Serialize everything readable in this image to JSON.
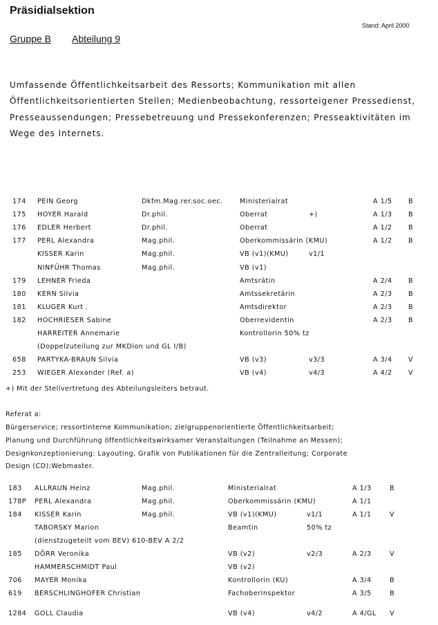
{
  "header": {
    "title": "Präsidialsektion",
    "stand": "Stand: April 2000",
    "gruppe": "Gruppe B",
    "abteilung": "Abteilung 9"
  },
  "intro": "Umfassende Öffentlichkeitsarbeit des Ressorts; Kommunikation mit allen Öffentlichkeitsorientierten Stellen; Medienbeobachtung, ressorteigener Pressedienst, Presseaussendungen; Pressebetreuung und Pressekonferenzen; Presseaktivitäten im Wege des Internets.",
  "staff_main": [
    [
      "174",
      "PEIN Georg",
      "Dkfm.Mag.rer.soc.oec.",
      "Ministerialrat",
      "",
      "A 1/5",
      "B"
    ],
    [
      "175",
      "HOYER Harald",
      "Dr.phil.",
      "Oberrat",
      "+)",
      "A 1/3",
      "B"
    ],
    [
      "176",
      "EDLER Herbert",
      "Dr.phil.",
      "Oberrat",
      "",
      "A 1/2",
      "B"
    ],
    [
      "177",
      "PERL Alexandra",
      "Mag.phil.",
      "Oberkommissärin (KMU)",
      "",
      "A 1/2",
      "B"
    ],
    [
      "",
      "KISSER Karin",
      "Mag.phil.",
      "VB (v1)(KMU)",
      "v1/1",
      "",
      ""
    ],
    [
      "",
      "NINFÜHR Thomas",
      "Mag.phil.",
      "VB (v1)",
      "",
      "",
      ""
    ],
    [
      "179",
      "LEHNER Frieda",
      "",
      "Amtsrätin",
      "",
      "A 2/4",
      "B"
    ],
    [
      "180",
      "KERN Silvia",
      "",
      "Amtssekretärin",
      "",
      "A 2/3",
      "B"
    ],
    [
      "181",
      "KLUGER Kurt .",
      "",
      "Amtsdirektor",
      "",
      "A 2/3",
      "B"
    ],
    [
      "182",
      "HOCHRIESER Sabine",
      "",
      "Oberrevidentin",
      "",
      "A 2/3",
      "B"
    ],
    [
      "",
      "HARREITER Annemarie",
      "",
      "Kontrollorin  50%  tz",
      "",
      "",
      ""
    ],
    [
      "",
      "(Doppelzuteilung zur MKDion und GL I/B)",
      "",
      "",
      "",
      "",
      ""
    ],
    [
      "658",
      "PARTYKA-BRAUN Silvia",
      "",
      "VB (v3)",
      "v3/3",
      "A 3/4",
      "V"
    ],
    [
      "253",
      "WIEGER Alexander  (Ref. a)",
      "",
      "VB (v4)",
      "v4/3",
      "A 4/2",
      "V"
    ]
  ],
  "footnote": "+) Mit der Stellvertretung des Abteilungsleiters betraut.",
  "referat": {
    "heading": "Referat a:",
    "lines": [
      "Bürgerservice; ressortinterne Kommunikation; zielgruppenorientierte Öffentlichkeitsarbeit;",
      "Planung und Durchführung öffentlichkeitswirksamer Veranstaltungen (Teilnahme an Messen);",
      "Designkonzeptionierung: Layouting, Grafik von Publikationen für die Zentralleitung; Corporate",
      "Design (CD);Webmaster."
    ]
  },
  "staff_ref": [
    [
      "183",
      "ALLRAUN Heinz",
      "Mag.phil.",
      "Ministerialrat",
      "",
      "A 1/3",
      "B"
    ],
    [
      "178P",
      "PERL Alexandra",
      "Mag.phil.",
      "Oberkommissärin (KMU)",
      "",
      "A 1/1",
      ""
    ],
    [
      "184",
      "KISSER Karin",
      "Mag.phil.",
      "VB (v1)(KMU)",
      "v1/1",
      "A 1/1",
      "V"
    ],
    [
      "",
      "TABORSKY Marion",
      "",
      "Beamtin",
      "50%  tz",
      "",
      ""
    ],
    [
      "",
      "(dienstzugeteilt vom BEV)  610-BEV A 2/2",
      "",
      "",
      "",
      "",
      ""
    ],
    [
      "185",
      "DÖRR Veronika",
      "",
      "VB (v2)",
      "v2/3",
      "A 2/3",
      "V"
    ],
    [
      "",
      "HAMMERSCHMIDT Paul",
      "",
      "VB (v2)",
      "",
      "",
      ""
    ],
    [
      "706",
      "MAYER Monika",
      "",
      "Kontrollorin (KU)",
      "",
      "A 3/4",
      "B"
    ],
    [
      "619",
      "BERSCHLINGHOFER Christian",
      "",
      "Fachoberinspektor",
      "",
      "A 3/5",
      "B"
    ],
    [
      "1284",
      "GOLL Claudia",
      "",
      "VB (v4)",
      "v4/2",
      "A 4/GL",
      "V"
    ]
  ]
}
